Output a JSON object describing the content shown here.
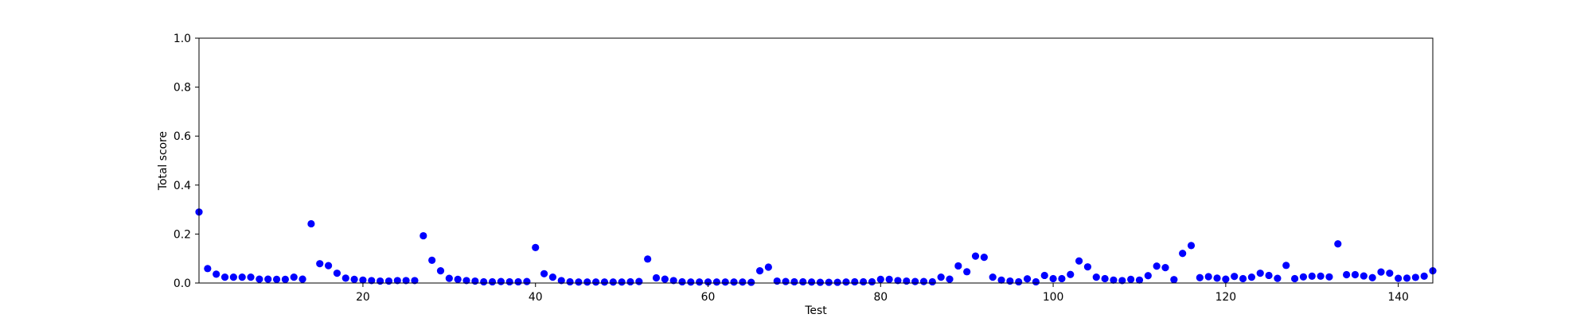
{
  "chart_data": {
    "type": "scatter",
    "title": "",
    "xlabel": "Test",
    "ylabel": "Total score",
    "xlim": [
      1,
      144
    ],
    "ylim": [
      0,
      1.0
    ],
    "xticks": [
      20,
      40,
      60,
      80,
      100,
      120,
      140
    ],
    "yticks": [
      0.0,
      0.2,
      0.4,
      0.6,
      0.8,
      1.0
    ],
    "ytick_labels": [
      "0.0",
      "0.2",
      "0.4",
      "0.6",
      "0.8",
      "1.0"
    ],
    "grid": false,
    "marker_color": "#0000ff",
    "x": [
      1,
      2,
      3,
      4,
      5,
      6,
      7,
      8,
      9,
      10,
      11,
      12,
      13,
      14,
      15,
      16,
      17,
      18,
      19,
      20,
      21,
      22,
      23,
      24,
      25,
      26,
      27,
      28,
      29,
      30,
      31,
      32,
      33,
      34,
      35,
      36,
      37,
      38,
      39,
      40,
      41,
      42,
      43,
      44,
      45,
      46,
      47,
      48,
      49,
      50,
      51,
      52,
      53,
      54,
      55,
      56,
      57,
      58,
      59,
      60,
      61,
      62,
      63,
      64,
      65,
      66,
      67,
      68,
      69,
      70,
      71,
      72,
      73,
      74,
      75,
      76,
      77,
      78,
      79,
      80,
      81,
      82,
      83,
      84,
      85,
      86,
      87,
      88,
      89,
      90,
      91,
      92,
      93,
      94,
      95,
      96,
      97,
      98,
      99,
      100,
      101,
      102,
      103,
      104,
      105,
      106,
      107,
      108,
      109,
      110,
      111,
      112,
      113,
      114,
      115,
      116,
      117,
      118,
      119,
      120,
      121,
      122,
      123,
      124,
      125,
      126,
      127,
      128,
      129,
      130,
      131,
      132,
      133,
      134,
      135,
      136,
      137,
      138,
      139,
      140,
      141,
      142,
      143,
      144
    ],
    "y": [
      0.29,
      0.059,
      0.036,
      0.024,
      0.024,
      0.024,
      0.024,
      0.016,
      0.016,
      0.015,
      0.015,
      0.024,
      0.016,
      0.242,
      0.079,
      0.071,
      0.04,
      0.02,
      0.015,
      0.012,
      0.01,
      0.008,
      0.008,
      0.01,
      0.01,
      0.01,
      0.193,
      0.093,
      0.05,
      0.019,
      0.015,
      0.01,
      0.008,
      0.005,
      0.005,
      0.006,
      0.005,
      0.005,
      0.006,
      0.145,
      0.038,
      0.024,
      0.01,
      0.005,
      0.004,
      0.004,
      0.004,
      0.004,
      0.004,
      0.004,
      0.005,
      0.006,
      0.098,
      0.021,
      0.016,
      0.01,
      0.005,
      0.004,
      0.004,
      0.004,
      0.004,
      0.004,
      0.004,
      0.004,
      0.003,
      0.05,
      0.065,
      0.008,
      0.006,
      0.005,
      0.005,
      0.004,
      0.003,
      0.003,
      0.003,
      0.004,
      0.005,
      0.005,
      0.005,
      0.015,
      0.015,
      0.01,
      0.008,
      0.006,
      0.006,
      0.005,
      0.024,
      0.016,
      0.07,
      0.046,
      0.11,
      0.105,
      0.024,
      0.012,
      0.008,
      0.005,
      0.017,
      0.005,
      0.031,
      0.018,
      0.018,
      0.035,
      0.09,
      0.066,
      0.024,
      0.018,
      0.012,
      0.01,
      0.015,
      0.012,
      0.03,
      0.069,
      0.063,
      0.014,
      0.121,
      0.153,
      0.022,
      0.026,
      0.02,
      0.016,
      0.027,
      0.018,
      0.024,
      0.04,
      0.031,
      0.019,
      0.072,
      0.018,
      0.025,
      0.028,
      0.028,
      0.025,
      0.16,
      0.034,
      0.034,
      0.029,
      0.022,
      0.045,
      0.04,
      0.019,
      0.02,
      0.023,
      0.028,
      0.05
    ]
  }
}
